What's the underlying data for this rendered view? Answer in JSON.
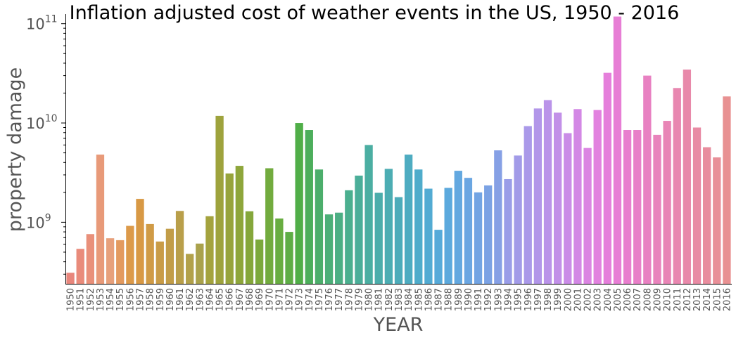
{
  "chart_data": {
    "type": "bar",
    "title": "Inflation adjusted cost of weather events in the US, 1950 - 2016",
    "xlabel": "YEAR",
    "ylabel": "property damage",
    "yscale": "log",
    "ylim": [
      240000000,
      125000000000
    ],
    "yticks": [
      {
        "value": 1000000000,
        "base": "10",
        "exp": "9"
      },
      {
        "value": 10000000000,
        "base": "10",
        "exp": "10"
      },
      {
        "value": 100000000000,
        "base": "10",
        "exp": "11"
      }
    ],
    "grid": false,
    "categories": [
      "1950",
      "1951",
      "1952",
      "1953",
      "1954",
      "1955",
      "1956",
      "1957",
      "1958",
      "1959",
      "1960",
      "1961",
      "1962",
      "1963",
      "1964",
      "1965",
      "1966",
      "1967",
      "1968",
      "1969",
      "1970",
      "1971",
      "1972",
      "1973",
      "1974",
      "1975",
      "1976",
      "1977",
      "1978",
      "1979",
      "1980",
      "1981",
      "1982",
      "1983",
      "1984",
      "1985",
      "1986",
      "1987",
      "1988",
      "1989",
      "1990",
      "1991",
      "1992",
      "1993",
      "1994",
      "1995",
      "1996",
      "1997",
      "1998",
      "1999",
      "2000",
      "2001",
      "2002",
      "2003",
      "2004",
      "2005",
      "2006",
      "2007",
      "2008",
      "2009",
      "2010",
      "2011",
      "2012",
      "2013",
      "2014",
      "2015",
      "2016"
    ],
    "values": [
      310000000,
      540000000,
      760000000,
      4800000000,
      690000000,
      660000000,
      920000000,
      1720000000,
      960000000,
      640000000,
      860000000,
      1300000000,
      480000000,
      610000000,
      1150000000,
      11800000000,
      3100000000,
      3700000000,
      1290000000,
      670000000,
      3500000000,
      1090000000,
      800000000,
      10000000000,
      8500000000,
      3400000000,
      1200000000,
      1250000000,
      2100000000,
      2950000000,
      6000000000,
      1980000000,
      3450000000,
      1790000000,
      4800000000,
      3400000000,
      2180000000,
      840000000,
      2220000000,
      3300000000,
      2800000000,
      2000000000,
      2350000000,
      5300000000,
      2720000000,
      4700000000,
      9300000000,
      14000000000,
      17000000000,
      12700000000,
      7900000000,
      13800000000,
      5600000000,
      13500000000,
      32000000000,
      118000000000,
      8500000000,
      8500000000,
      30000000000,
      7600000000,
      10500000000,
      22500000000,
      34500000000,
      9000000000,
      5700000000,
      4500000000,
      18500000000
    ],
    "colors": [
      "#e8867c",
      "#e98b7b",
      "#e9907a",
      "#e89a79",
      "#e7a07b",
      "#e39a5f",
      "#dc9a4a",
      "#d89945",
      "#d09b46",
      "#c99c47",
      "#c29d48",
      "#b99f4a",
      "#b2a14b",
      "#aaa24c",
      "#a4a33e",
      "#9ea33d",
      "#97a43c",
      "#8ea63b",
      "#85a73b",
      "#7ca93c",
      "#72ab3e",
      "#68ad41",
      "#5ead46",
      "#50ae48",
      "#4cae5b",
      "#4cae6b",
      "#4caf78",
      "#4caf84",
      "#4baf8f",
      "#4bae99",
      "#4baea2",
      "#4cadab",
      "#4cadb3",
      "#4dacba",
      "#4eacc1",
      "#4faccb",
      "#52abd3",
      "#56aad9",
      "#5ca9dd",
      "#63a8e0",
      "#6aa6e2",
      "#72a4e3",
      "#7ba2e4",
      "#86a0e5",
      "#9a9de8",
      "#a29be8",
      "#aa99e9",
      "#b296e9",
      "#ba93e9",
      "#c290e8",
      "#ca8ce7",
      "#d388e5",
      "#db85e2",
      "#e282df",
      "#e57fdb",
      "#e77ed5",
      "#e87ece",
      "#e87fc8",
      "#e881c2",
      "#e883bc",
      "#e885b6",
      "#e887b0",
      "#e889aa",
      "#e88ba4",
      "#e88d9e",
      "#e88f98",
      "#e89192"
    ]
  }
}
